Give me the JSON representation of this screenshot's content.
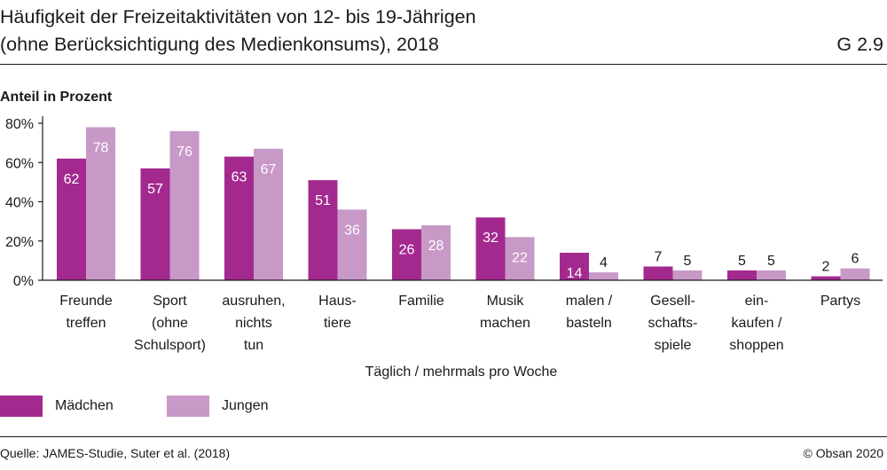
{
  "header": {
    "title_line1": "Häufigkeit der Freizeitaktivitäten von 12- bis 19-Jährigen",
    "title_line2": "(ohne Berücksichtigung des Medienkonsums), 2018",
    "figure_id": "G 2.9"
  },
  "footer": {
    "source": "Quelle: JAMES-Studie, Suter et al. (2018)",
    "copyright": "© Obsan 2020"
  },
  "chart_data": {
    "type": "bar",
    "title": "Häufigkeit der Freizeitaktivitäten von 12- bis 19-Jährigen (ohne Berücksichtigung des Medienkonsums), 2018",
    "ylabel": "Anteil in Prozent",
    "xlabel": "Täglich / mehrmals pro Woche",
    "ylim": [
      0,
      80
    ],
    "yticks": [
      0,
      20,
      40,
      60,
      80
    ],
    "ytick_labels": [
      "0%",
      "20%",
      "40%",
      "60%",
      "80%"
    ],
    "grid": false,
    "legend_position": "bottom-left",
    "categories": [
      [
        "Freunde",
        "treffen"
      ],
      [
        "Sport",
        "(ohne",
        "Schulsport)"
      ],
      [
        "ausruhen,",
        "nichts",
        "tun"
      ],
      [
        "Haus-",
        "tiere"
      ],
      [
        "Familie"
      ],
      [
        "Musik",
        "machen"
      ],
      [
        "malen /",
        "basteln"
      ],
      [
        "Gesell-",
        "schafts-",
        "spiele"
      ],
      [
        "ein-",
        "kaufen /",
        "shoppen"
      ],
      [
        "Partys"
      ]
    ],
    "series": [
      {
        "name": "Mädchen",
        "color": "#a3298f",
        "values": [
          62,
          57,
          63,
          51,
          26,
          32,
          14,
          7,
          5,
          2
        ]
      },
      {
        "name": "Jungen",
        "color": "#c898c7",
        "values": [
          78,
          76,
          67,
          36,
          28,
          22,
          4,
          5,
          5,
          6
        ]
      }
    ]
  }
}
